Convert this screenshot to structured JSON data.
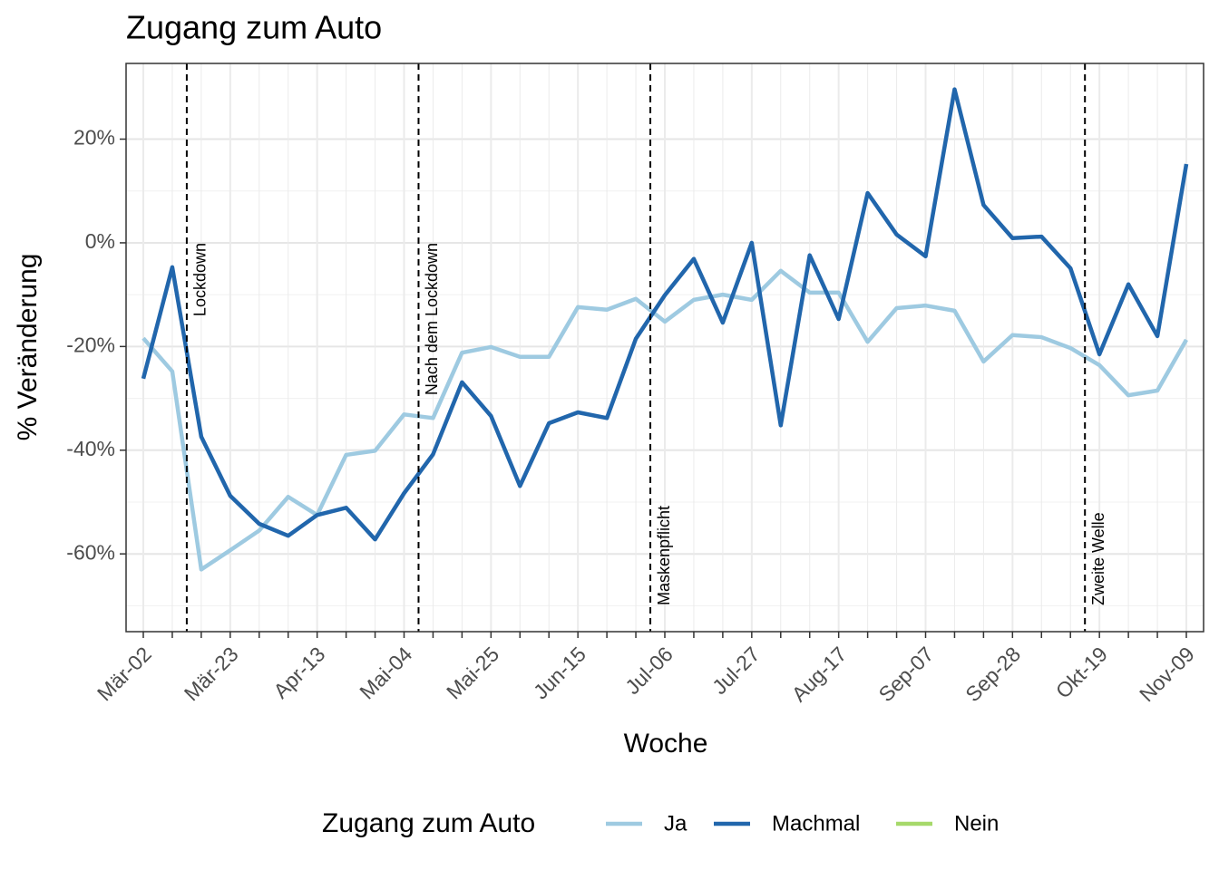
{
  "chart_data": {
    "type": "line",
    "title": "Zugang zum Auto",
    "x_label": "Woche",
    "y_label": "% Veränderung",
    "categories": [
      "Mär-02",
      null,
      null,
      "Mär-23",
      null,
      null,
      "Apr-13",
      null,
      null,
      "Mai-04",
      null,
      null,
      "Mai-25",
      null,
      null,
      "Jun-15",
      null,
      null,
      "Jul-06",
      null,
      null,
      "Jul-27",
      null,
      null,
      "Aug-17",
      null,
      null,
      "Sep-07",
      null,
      null,
      "Sep-28",
      null,
      null,
      "Okt-19",
      null,
      null,
      "Nov-09"
    ],
    "series": [
      {
        "name": "Ja",
        "color": "#9ecae1",
        "values": [
          -18.4,
          -24.8,
          -63.0,
          -59.3,
          -55.5,
          -49.0,
          -52.5,
          -40.9,
          -40.1,
          -33.1,
          -33.8,
          -21.2,
          -20.1,
          -22.0,
          -22.0,
          -12.4,
          -12.9,
          -10.8,
          -15.2,
          -11.0,
          -10.0,
          -11.0,
          -5.4,
          -9.6,
          -9.6,
          -19.1,
          -12.6,
          -12.1,
          -13.1,
          -22.9,
          -17.8,
          -18.2,
          -20.3,
          -23.6,
          -29.4,
          -28.5,
          -18.7
        ]
      },
      {
        "name": "Machmal",
        "color": "#2166ac",
        "values": [
          -26.2,
          -4.7,
          -37.4,
          -48.8,
          -54.2,
          -56.5,
          -52.5,
          -51.1,
          -57.2,
          -48.3,
          -40.8,
          -26.9,
          -33.4,
          -46.9,
          -34.8,
          -32.7,
          -33.8,
          -18.5,
          -10.1,
          -3.1,
          -15.4,
          0,
          -35.2,
          -2.4,
          -14.7,
          9.6,
          1.6,
          -2.6,
          29.6,
          7.3,
          0.9,
          1.2,
          -4.9,
          -21.5,
          -8.0,
          -18.0,
          15.2
        ]
      },
      {
        "name": "Nein",
        "color": "#a6d96a",
        "values": [
          null,
          null,
          null,
          null,
          null,
          null,
          null,
          null,
          null,
          null,
          null,
          null,
          null,
          null,
          null,
          null,
          null,
          null,
          null,
          null,
          null,
          null,
          null,
          null,
          null,
          null,
          null,
          null,
          null,
          null,
          null,
          null,
          null,
          null,
          null,
          null,
          null
        ]
      }
    ],
    "ylim": [
      -75,
      34.6
    ],
    "yticks": [
      {
        "value": -60,
        "label": "-60%"
      },
      {
        "value": -40,
        "label": "-40%"
      },
      {
        "value": -20,
        "label": "-20%"
      },
      {
        "value": 0,
        "label": "0%"
      },
      {
        "value": 20,
        "label": "20%"
      }
    ],
    "grid": true,
    "legend_title": "Zugang zum Auto",
    "legend_position": "bottom",
    "annotations": [
      {
        "label": "Lockdown",
        "x": 1.5
      },
      {
        "label": "Nach dem Lockdown",
        "x": 9.5
      },
      {
        "label": "Maskenpflicht",
        "x": 17.5
      },
      {
        "label": "Zweite Welle",
        "x": 32.5
      }
    ]
  }
}
